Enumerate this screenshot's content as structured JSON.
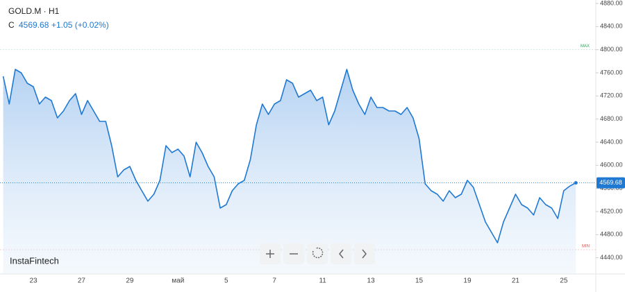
{
  "chart_data": {
    "type": "area",
    "title": "GOLD.M · H1",
    "price_prefix": "C",
    "change": "+1.05 (+0.02%)",
    "watermark": "InstaFintech",
    "color": "#1f78d1",
    "categories": [
      null,
      null,
      null,
      null,
      null,
      "23",
      null,
      null,
      null,
      null,
      null,
      null,
      null,
      "27",
      null,
      null,
      null,
      null,
      null,
      null,
      null,
      "29",
      null,
      null,
      null,
      null,
      null,
      null,
      null,
      "май",
      null,
      null,
      null,
      null,
      null,
      null,
      null,
      "5",
      null,
      null,
      null,
      null,
      null,
      null,
      null,
      "7",
      null,
      null,
      null,
      null,
      null,
      null,
      null,
      "11",
      null,
      null,
      null,
      null,
      null,
      null,
      null,
      "13",
      null,
      null,
      null,
      null,
      null,
      null,
      null,
      "15",
      null,
      null,
      null,
      null,
      null,
      null,
      null,
      "19",
      null,
      null,
      null,
      null,
      null,
      null,
      null,
      "21",
      null,
      null,
      null,
      null,
      null,
      null,
      null,
      "25",
      null,
      null
    ],
    "values": [
      4754,
      4706,
      4766,
      4760,
      4742,
      4736,
      4706,
      4718,
      4712,
      4682,
      4694,
      4712,
      4724,
      4688,
      4712,
      4694,
      4676,
      4676,
      4634,
      4580,
      4592,
      4598,
      4574,
      4556,
      4538,
      4550,
      4574,
      4634,
      4622,
      4628,
      4616,
      4580,
      4640,
      4622,
      4598,
      4580,
      4526,
      4532,
      4556,
      4568,
      4574,
      4610,
      4670,
      4706,
      4688,
      4706,
      4712,
      4748,
      4742,
      4718,
      4724,
      4730,
      4712,
      4718,
      4670,
      4694,
      4730,
      4766,
      4730,
      4706,
      4688,
      4718,
      4700,
      4700,
      4694,
      4694,
      4688,
      4700,
      4682,
      4646,
      4568,
      4556,
      4550,
      4538,
      4556,
      4544,
      4550,
      4574,
      4562,
      4532,
      4502,
      4484,
      4466,
      4502,
      4526,
      4550,
      4532,
      4526,
      4514,
      4544,
      4532,
      4526,
      4508,
      4556,
      4564,
      4569.68
    ],
    "ylim": [
      4412,
      4886
    ],
    "yticks": [
      {
        "value": 4440,
        "label": "4440.00"
      },
      {
        "value": 4480,
        "label": "4480.00"
      },
      {
        "value": 4520,
        "label": "4520.00"
      },
      {
        "value": 4560,
        "label": "4560.00"
      },
      {
        "value": 4600,
        "label": "4600.00"
      },
      {
        "value": 4640,
        "label": "4640.00"
      },
      {
        "value": 4680,
        "label": "4680.00"
      },
      {
        "value": 4720,
        "label": "4720.00"
      },
      {
        "value": 4760,
        "label": "4760.00"
      },
      {
        "value": 4800,
        "label": "4800.00"
      },
      {
        "value": 4840,
        "label": "4840.00"
      },
      {
        "value": 4880,
        "label": "4880.00"
      }
    ],
    "max_line": {
      "label": "MAX",
      "value": 4800
    },
    "min_line": {
      "label": "MIN",
      "value": 4454
    }
  }
}
